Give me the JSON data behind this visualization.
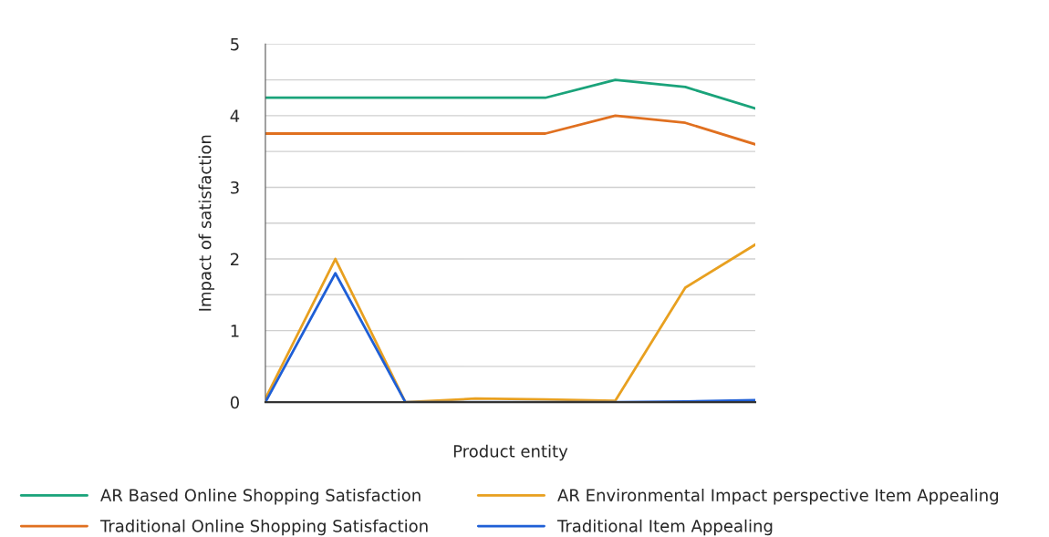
{
  "chart_data": {
    "type": "line",
    "xlabel": "Product entity",
    "ylabel": "Impact of satisfaction",
    "categories": [
      null,
      null,
      null,
      null,
      null,
      null,
      null,
      null
    ],
    "series": [
      {
        "name": "AR Based Online Shopping Satisfaction",
        "color": "#1aa37a",
        "values": [
          4.25,
          4.25,
          4.25,
          4.25,
          4.25,
          4.5,
          4.4,
          4.1
        ]
      },
      {
        "name": "Traditional Online Shopping Satisfaction",
        "color": "#e07020",
        "values": [
          3.75,
          3.75,
          3.75,
          3.75,
          3.75,
          4.0,
          3.9,
          3.6
        ]
      },
      {
        "name": "AR Environmental Impact perspective Item Appealing",
        "color": "#e8a020",
        "values": [
          0.05,
          2.0,
          0.0,
          0.05,
          0.04,
          0.02,
          1.6,
          2.2
        ]
      },
      {
        "name": "Traditional Item Appealing",
        "color": "#1f5fd6",
        "values": [
          0.0,
          1.8,
          0.0,
          0.0,
          0.0,
          0.0,
          0.01,
          0.03
        ]
      }
    ],
    "ylim": [
      0,
      5
    ],
    "yticks": [
      0,
      {
        "value": 0.5,
        "label": null
      },
      1,
      {
        "value": 1.5,
        "label": null
      },
      2,
      {
        "value": 2.5,
        "label": null
      },
      3,
      {
        "value": 3.5,
        "label": null
      },
      4,
      {
        "value": 4.5,
        "label": null
      },
      5
    ],
    "grid": "y",
    "legend": "bottom",
    "marker": "none",
    "line_style": "solid"
  }
}
